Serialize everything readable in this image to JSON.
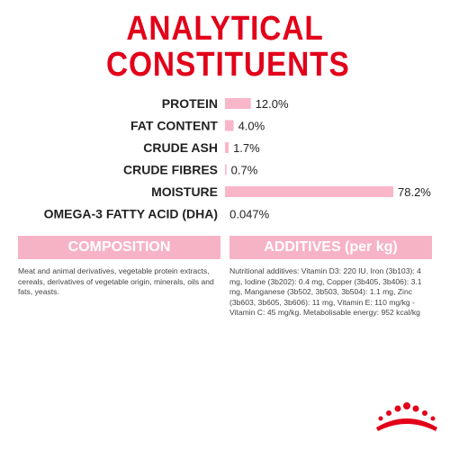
{
  "chart_data": {
    "type": "bar",
    "title": "ANALYTICAL CONSTITUENTS",
    "categories": [
      "PROTEIN",
      "FAT CONTENT",
      "CRUDE ASH",
      "CRUDE FIBRES",
      "MOISTURE",
      "OMEGA-3 FATTY ACID (DHA)"
    ],
    "values": [
      12.0,
      4.0,
      1.7,
      0.7,
      78.2,
      0.047
    ],
    "value_labels": [
      "12.0%",
      "4.0%",
      "1.7%",
      "0.7%",
      "78.2%",
      "0.047%"
    ],
    "color": "#f9b6c9"
  },
  "composition": {
    "title": "COMPOSITION",
    "text": "Meat and animal derivatives, vegetable protein extracts, cereals, derivatives of vegetable origin, minerals, oils and fats, yeasts."
  },
  "additives": {
    "title": "ADDITIVES (per kg)",
    "text": "Nutritional additives: Vitamin D3: 220 IU, Iron (3b103): 4 mg, Iodine (3b202): 0.4 mg, Copper (3b405, 3b406): 3.1 mg, Manganese (3b502, 3b503, 3b504): 1.1 mg, Zinc (3b603, 3b605, 3b606): 11 mg, Vitamin E: 110 mg/kg - Vitamin C: 45 mg/kg. Metabolisable energy: 952 kcal/kg"
  }
}
